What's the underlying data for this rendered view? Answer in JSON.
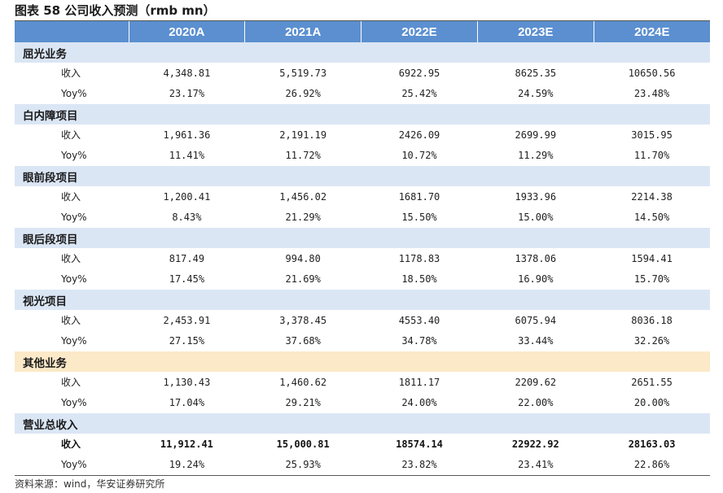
{
  "title": "图表 58 公司收入预测（rmb mn）",
  "header": [
    "",
    "2020A",
    "2021A",
    "2022E",
    "2023E",
    "2024E"
  ],
  "sections": [
    {
      "name": "屈光业务",
      "rows": [
        {
          "label": "收入",
          "values": [
            "4,348.81",
            "5,519.73",
            "6922.95",
            "8625.35",
            "10650.56"
          ]
        },
        {
          "label": "Yoy%",
          "values": [
            "23.17%",
            "26.92%",
            "25.42%",
            "24.59%",
            "23.48%"
          ]
        }
      ]
    },
    {
      "name": "白内障项目",
      "rows": [
        {
          "label": "收入",
          "values": [
            "1,961.36",
            "2,191.19",
            "2426.09",
            "2699.99",
            "3015.95"
          ]
        },
        {
          "label": "Yoy%",
          "values": [
            "11.41%",
            "11.72%",
            "10.72%",
            "11.29%",
            "11.70%"
          ]
        }
      ]
    },
    {
      "name": "眼前段项目",
      "rows": [
        {
          "label": "收入",
          "values": [
            "1,200.41",
            "1,456.02",
            "1681.70",
            "1933.96",
            "2214.38"
          ]
        },
        {
          "label": "Yoy%",
          "values": [
            "8.43%",
            "21.29%",
            "15.50%",
            "15.00%",
            "14.50%"
          ]
        }
      ]
    },
    {
      "name": "眼后段项目",
      "rows": [
        {
          "label": "收入",
          "values": [
            "817.49",
            "994.80",
            "1178.83",
            "1378.06",
            "1594.41"
          ]
        },
        {
          "label": "Yoy%",
          "values": [
            "17.45%",
            "21.69%",
            "18.50%",
            "16.90%",
            "15.70%"
          ]
        }
      ]
    },
    {
      "name": "视光项目",
      "rows": [
        {
          "label": "收入",
          "values": [
            "2,453.91",
            "3,378.45",
            "4553.40",
            "6075.94",
            "8036.18"
          ]
        },
        {
          "label": "Yoy%",
          "values": [
            "27.15%",
            "37.68%",
            "34.78%",
            "33.44%",
            "32.26%"
          ]
        }
      ]
    },
    {
      "name": "其他业务",
      "rows": [
        {
          "label": "收入",
          "values": [
            "1,130.43",
            "1,460.62",
            "1811.17",
            "2209.62",
            "2651.55"
          ]
        },
        {
          "label": "Yoy%",
          "values": [
            "17.04%",
            "29.21%",
            "24.00%",
            "22.00%",
            "20.00%"
          ]
        }
      ]
    },
    {
      "name": "营业总收入",
      "rows": [
        {
          "label": "收入",
          "values": [
            "11,912.41",
            "15,000.81",
            "18574.14",
            "22922.92",
            "28163.03"
          ]
        },
        {
          "label": "Yoy%",
          "values": [
            "19.24%",
            "25.93%",
            "23.82%",
            "23.41%",
            "22.86%"
          ]
        }
      ]
    }
  ],
  "source": "资料来源：wind，华安证券研究所",
  "colors": {
    "header_bg": "#5b8fd0",
    "section_bg": "#dbe6f5",
    "highlight_section_bg": "#fbe9c8"
  }
}
